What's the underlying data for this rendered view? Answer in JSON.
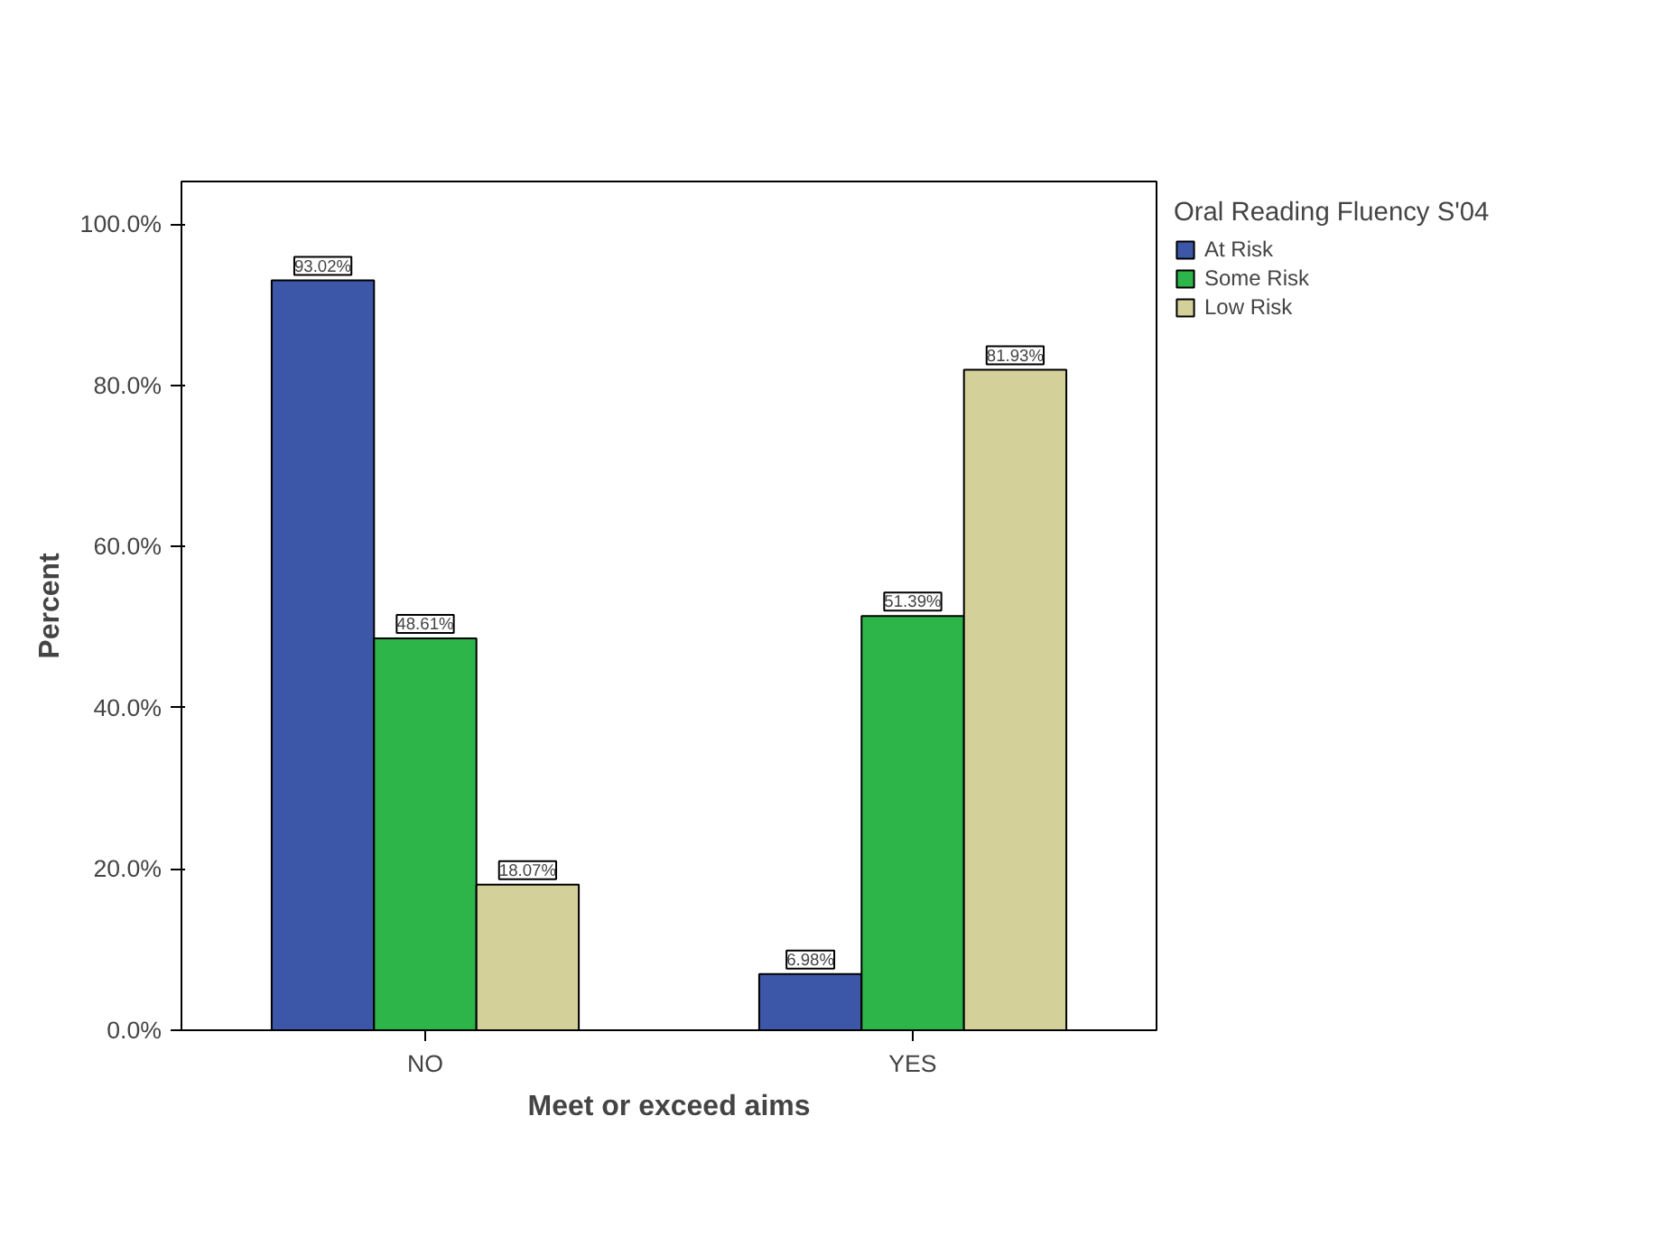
{
  "chart_data": {
    "type": "bar",
    "xlabel": "Meet or exceed aims",
    "ylabel": "Percent",
    "legend_title": "Oral Reading Fluency S'04",
    "categories": [
      "NO",
      "YES"
    ],
    "series": [
      {
        "name": "At Risk",
        "color": "#3d57a8",
        "values": [
          93.02,
          6.98
        ],
        "value_labels": [
          "93.02%",
          "6.98%"
        ]
      },
      {
        "name": "Some Risk",
        "color": "#2db54a",
        "values": [
          48.61,
          51.39
        ],
        "value_labels": [
          "48.61%",
          "51.39%"
        ]
      },
      {
        "name": "Low Risk",
        "color": "#d4d09a",
        "values": [
          18.07,
          81.93
        ],
        "value_labels": [
          "18.07%",
          "81.93%"
        ]
      }
    ],
    "ylim": [
      0,
      105.3
    ],
    "yticks": [
      {
        "value": 0,
        "label": "0.0%"
      },
      {
        "value": 20,
        "label": "20.0%"
      },
      {
        "value": 40,
        "label": "40.0%"
      },
      {
        "value": 60,
        "label": "60.0%"
      },
      {
        "value": 80,
        "label": "80.0%"
      },
      {
        "value": 100,
        "label": "100.0%"
      }
    ],
    "legend": "right",
    "grid": false
  }
}
